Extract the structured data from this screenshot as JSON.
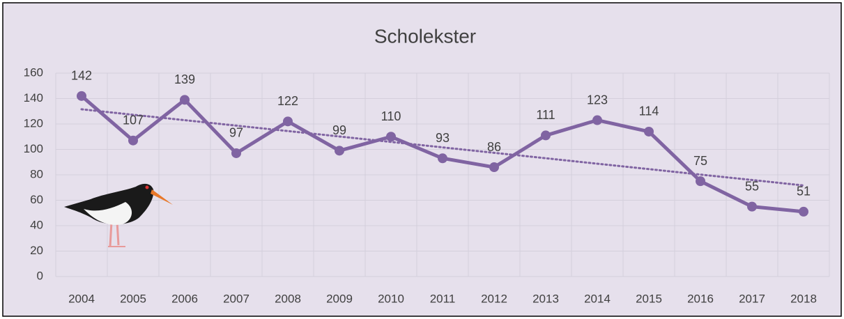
{
  "chart_data": {
    "type": "line",
    "title": "Scholekster",
    "categories": [
      "2004",
      "2005",
      "2006",
      "2007",
      "2008",
      "2009",
      "2010",
      "2011",
      "2012",
      "2013",
      "2014",
      "2015",
      "2016",
      "2017",
      "2018"
    ],
    "series": [
      {
        "color": "#8064a2",
        "values": [
          142,
          107,
          139,
          97,
          122,
          99,
          110,
          93,
          86,
          111,
          123,
          114,
          75,
          55,
          51
        ]
      }
    ],
    "ylim": [
      0,
      160
    ],
    "yticks": [
      0,
      20,
      40,
      60,
      80,
      100,
      120,
      140,
      160
    ],
    "grid": true,
    "trendline": true
  }
}
